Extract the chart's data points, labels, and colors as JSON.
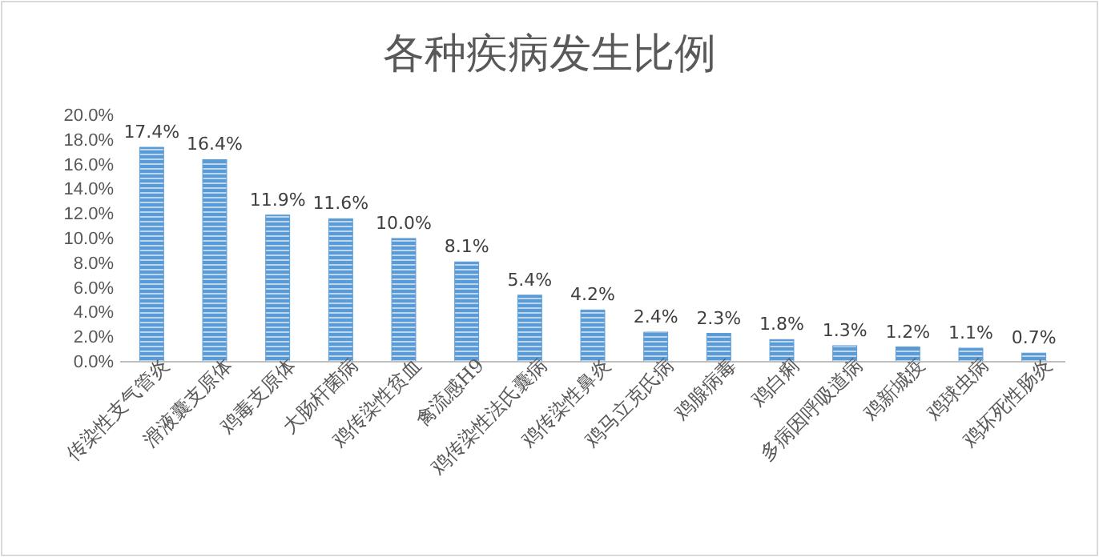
{
  "chart_data": {
    "type": "bar",
    "title": "各种疾病发生比例",
    "categories": [
      "传染性支气管炎",
      "滑液囊支原体",
      "鸡毒支原体",
      "大肠杆菌病",
      "鸡传染性贫血",
      "禽流感H9",
      "鸡传染性法氏囊病",
      "鸡传染性鼻炎",
      "鸡马立克氏病",
      "鸡腺病毒",
      "鸡白痢",
      "多病因呼吸道病",
      "鸡新城疫",
      "鸡球虫病",
      "鸡坏死性肠炎"
    ],
    "values": [
      17.4,
      16.4,
      11.9,
      11.6,
      10.0,
      8.1,
      5.4,
      4.2,
      2.4,
      2.3,
      1.8,
      1.3,
      1.2,
      1.1,
      0.7
    ],
    "value_labels": [
      "17.4%",
      "16.4%",
      "11.9%",
      "11.6%",
      "10.0%",
      "8.1%",
      "5.4%",
      "4.2%",
      "2.4%",
      "2.3%",
      "1.8%",
      "1.3%",
      "1.2%",
      "1.1%",
      "0.7%"
    ],
    "color": "#5b9bd5",
    "ylim": [
      0,
      20
    ],
    "yticks": [
      {
        "value": 0,
        "label": "0.0%"
      },
      {
        "value": 2,
        "label": "2.0%"
      },
      {
        "value": 4,
        "label": "4.0%"
      },
      {
        "value": 6,
        "label": "6.0%"
      },
      {
        "value": 8,
        "label": "8.0%"
      },
      {
        "value": 10,
        "label": "10.0%"
      },
      {
        "value": 12,
        "label": "12.0%"
      },
      {
        "value": 14,
        "label": "14.0%"
      },
      {
        "value": 16,
        "label": "16.0%"
      },
      {
        "value": 18,
        "label": "18.0%"
      },
      {
        "value": 20,
        "label": "20.0%"
      }
    ],
    "grid": false
  }
}
